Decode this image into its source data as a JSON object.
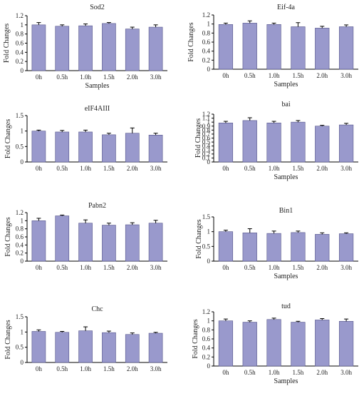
{
  "colors": {
    "bar": "#9999cc",
    "bar_stroke": "#55558a",
    "axis": "#000000",
    "text": "#222222"
  },
  "chart_data": [
    {
      "type": "bar",
      "title": "Sod2",
      "xlabel": "Samples",
      "ylabel": "Fold Changes",
      "categories": [
        "0h",
        "0.5h",
        "1.0h",
        "1.5h",
        "2.0h",
        "3.0h"
      ],
      "values": [
        1.0,
        0.97,
        0.98,
        1.03,
        0.91,
        0.95
      ],
      "errors": [
        0.05,
        0.03,
        0.04,
        0.02,
        0.04,
        0.05
      ],
      "ylim": [
        0,
        1.2
      ],
      "yticks": [
        "0",
        "0.2",
        "0.4",
        "0.6",
        "0.8",
        "1",
        "1.2"
      ],
      "ytick_values": [
        0,
        0.2,
        0.4,
        0.6,
        0.8,
        1,
        1.2
      ],
      "grid": false,
      "legend": "none"
    },
    {
      "type": "bar",
      "title": "Eif-4a",
      "xlabel": "Samples",
      "ylabel": "Fold Changes",
      "categories": [
        "0h",
        "0.5h",
        "1.0h",
        "1.5h",
        "2.0h",
        "3.0h"
      ],
      "values": [
        0.99,
        1.02,
        0.99,
        0.94,
        0.91,
        0.94
      ],
      "errors": [
        0.03,
        0.05,
        0.03,
        0.09,
        0.04,
        0.04
      ],
      "ylim": [
        0,
        1.2
      ],
      "yticks": [
        "0",
        "0.2",
        "0.4",
        "0.6",
        "0.8",
        "1",
        "1.2"
      ],
      "ytick_values": [
        0,
        0.2,
        0.4,
        0.6,
        0.8,
        1,
        1.2
      ],
      "grid": false,
      "legend": "none"
    },
    {
      "type": "bar",
      "title": "eIF4AIII",
      "xlabel": "",
      "ylabel": "Fold Changes",
      "categories": [
        "0h",
        "0.5h",
        "1.0h",
        "1.5h",
        "2.0h",
        "3.0h"
      ],
      "values": [
        1.0,
        0.97,
        0.97,
        0.88,
        0.93,
        0.87
      ],
      "errors": [
        0.03,
        0.05,
        0.06,
        0.05,
        0.17,
        0.06
      ],
      "ylim": [
        0,
        1.5
      ],
      "yticks": [
        "0",
        "0.5",
        "1",
        "1.5"
      ],
      "ytick_values": [
        0,
        0.5,
        1,
        1.5
      ],
      "grid": false,
      "legend": "none"
    },
    {
      "type": "bar",
      "title": "bai",
      "xlabel": "Samples",
      "ylabel": "Fold Changes",
      "categories": [
        "0h",
        "0.5h",
        "1.0h",
        "1.5h",
        "2.0h",
        "3.0h"
      ],
      "values": [
        0.98,
        1.04,
        0.98,
        1.0,
        0.9,
        0.93
      ],
      "errors": [
        0.04,
        0.07,
        0.04,
        0.04,
        0.02,
        0.04
      ],
      "ylim": [
        0,
        1.2
      ],
      "yticks": [
        "0",
        "0.1",
        "0.2",
        "0.3",
        "0.4",
        "0.5",
        "0.6",
        "0.7",
        "0.8",
        "0.9",
        "1",
        "1.1",
        "1.2"
      ],
      "ytick_values": [
        0,
        0.1,
        0.2,
        0.3,
        0.4,
        0.5,
        0.6,
        0.7,
        0.8,
        0.9,
        1,
        1.1,
        1.2
      ],
      "grid": false,
      "legend": "none"
    },
    {
      "type": "bar",
      "title": "Pabn2",
      "xlabel": "",
      "ylabel": "Fold Changes",
      "categories": [
        "0h",
        "0.5h",
        "1.0h",
        "1.5h",
        "2.0h",
        "3.0h"
      ],
      "values": [
        1.0,
        1.12,
        0.94,
        0.89,
        0.9,
        0.94
      ],
      "errors": [
        0.06,
        0.02,
        0.08,
        0.05,
        0.05,
        0.07
      ],
      "ylim": [
        0,
        1.2
      ],
      "yticks": [
        "0",
        "0.2",
        "0.4",
        "0.6",
        "0.8",
        "1",
        "1.2"
      ],
      "ytick_values": [
        0,
        0.2,
        0.4,
        0.6,
        0.8,
        1,
        1.2
      ],
      "grid": false,
      "legend": "none"
    },
    {
      "type": "bar",
      "title": "Bin1",
      "xlabel": "Samples",
      "ylabel": "Fold Changes",
      "categories": [
        "0h",
        "0.5h",
        "1.0h",
        "1.5h",
        "2.0h",
        "3.0h"
      ],
      "values": [
        1.0,
        0.96,
        0.94,
        0.97,
        0.91,
        0.93
      ],
      "errors": [
        0.05,
        0.14,
        0.08,
        0.05,
        0.05,
        0.03
      ],
      "ylim": [
        0,
        1.5
      ],
      "yticks": [
        "0",
        "0.5",
        "1",
        "1.5"
      ],
      "ytick_values": [
        0,
        0.5,
        1,
        1.5
      ],
      "grid": false,
      "legend": "none"
    },
    {
      "type": "bar",
      "title": "Chc",
      "xlabel": "",
      "ylabel": "Fold Changes",
      "categories": [
        "0h",
        "0.5h",
        "1.0h",
        "1.5h",
        "2.0h",
        "3.0h"
      ],
      "values": [
        1.02,
        0.99,
        1.04,
        0.98,
        0.92,
        0.96
      ],
      "errors": [
        0.05,
        0.03,
        0.13,
        0.05,
        0.05,
        0.03
      ],
      "ylim": [
        0,
        1.5
      ],
      "yticks": [
        "0",
        "0.5",
        "1",
        "1.5"
      ],
      "ytick_values": [
        0,
        0.5,
        1,
        1.5
      ],
      "grid": false,
      "legend": "none"
    },
    {
      "type": "bar",
      "title": "tud",
      "xlabel": "Samples",
      "ylabel": "Fold Changes",
      "categories": [
        "0h",
        "0.5h",
        "1.0h",
        "1.5h",
        "2.0h",
        "3.0h"
      ],
      "values": [
        1.0,
        0.97,
        1.03,
        0.97,
        1.02,
        0.99
      ],
      "errors": [
        0.04,
        0.03,
        0.03,
        0.02,
        0.03,
        0.05
      ],
      "ylim": [
        0,
        1.2
      ],
      "yticks": [
        "0",
        "0.2",
        "0.4",
        "0.6",
        "0.8",
        "1",
        "1.2"
      ],
      "ytick_values": [
        0,
        0.2,
        0.4,
        0.6,
        0.8,
        1,
        1.2
      ],
      "grid": false,
      "legend": "none"
    }
  ]
}
